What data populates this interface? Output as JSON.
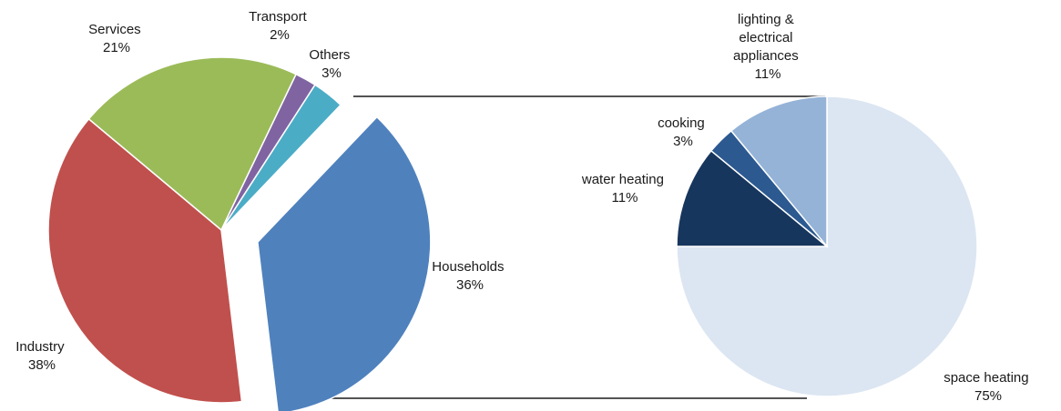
{
  "colors": {
    "services": "#9bbb59",
    "transport": "#8064a2",
    "others": "#4bacc6",
    "households": "#4f81bd",
    "industry": "#c0504d",
    "space_heating": "#dce6f2",
    "water_heating": "#17365d",
    "cooking": "#2c5990",
    "lighting": "#95b3d7"
  },
  "chart_data": [
    {
      "type": "pie",
      "slices": [
        {
          "key": "services",
          "label": "Services",
          "value_label": "21%",
          "value": 21
        },
        {
          "key": "transport",
          "label": "Transport",
          "value_label": "2%",
          "value": 2
        },
        {
          "key": "others",
          "label": "Others",
          "value_label": "3%",
          "value": 3
        },
        {
          "key": "households",
          "label": "Households",
          "value_label": "36%",
          "value": 36
        },
        {
          "key": "industry",
          "label": "Industry",
          "value_label": "38%",
          "value": 38
        }
      ]
    },
    {
      "type": "pie",
      "slices": [
        {
          "key": "space_heating",
          "label": "space heating",
          "value_label": "75%",
          "value": 75
        },
        {
          "key": "water_heating",
          "label": "water heating",
          "value_label": "11%",
          "value": 11
        },
        {
          "key": "cooking",
          "label": "cooking",
          "value_label": "3%",
          "value": 3
        },
        {
          "key": "lighting",
          "label": "lighting & electrical appliances",
          "value_label": "11%",
          "value": 11
        }
      ]
    }
  ]
}
